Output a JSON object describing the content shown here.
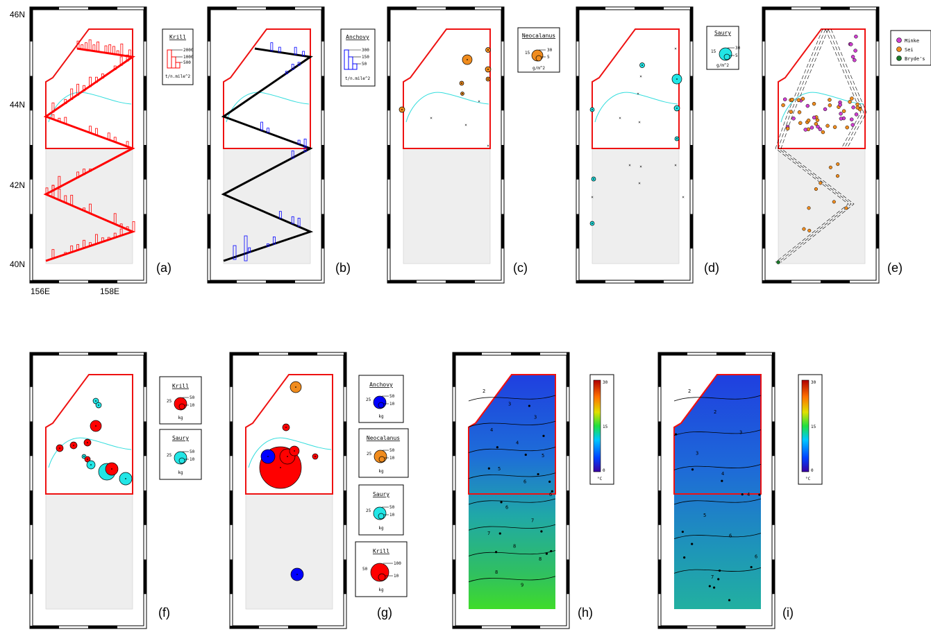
{
  "axis": {
    "lat_labels": [
      "46N",
      "44N",
      "42N",
      "40N"
    ],
    "lon_labels": [
      "156E",
      "158E"
    ]
  },
  "panel_labels": [
    "(a)",
    "(b)",
    "(c)",
    "(d)",
    "(e)",
    "(f)",
    "(g)",
    "(h)",
    "(i)"
  ],
  "legends": {
    "krill_a": {
      "title": "Krill",
      "values": [
        "2000",
        "1000",
        "500"
      ],
      "unit": "t/n.mile^2",
      "color": "#ff0000"
    },
    "anchovy_b": {
      "title": "Anchovy",
      "values": [
        "300",
        "150",
        "50"
      ],
      "unit": "t/n.mile^2",
      "color": "#0000ff"
    },
    "neocalanus_c": {
      "title": "Neocalanus",
      "left": "15",
      "values": [
        "30",
        "5"
      ],
      "unit": "g/m^2",
      "color": "#f08c1e"
    },
    "saury_d": {
      "title": "Saury",
      "left": "15",
      "values": [
        "30",
        "5"
      ],
      "unit": "g/m^2",
      "color": "#22e6e6"
    },
    "whales_e": [
      {
        "name": "Minke",
        "color": "#d040d0"
      },
      {
        "name": "Sei",
        "color": "#f08c1e"
      },
      {
        "name": "Bryde's",
        "color": "#1a7a2a"
      }
    ],
    "krill_f": {
      "title": "Krill",
      "left": "25",
      "values": [
        "50",
        "10"
      ],
      "unit": "kg",
      "color": "#ff0000"
    },
    "saury_f": {
      "title": "Saury",
      "left": "25",
      "values": [
        "50",
        "10"
      ],
      "unit": "kg",
      "color": "#22e6e6"
    },
    "anchovy_g": {
      "title": "Anchovy",
      "left": "25",
      "values": [
        "50",
        "10"
      ],
      "unit": "kg",
      "color": "#0000ff"
    },
    "neocalanus_g": {
      "title": "Neocalanus",
      "left": "25",
      "values": [
        "50",
        "10"
      ],
      "unit": "kg",
      "color": "#f08c1e"
    },
    "saury_g": {
      "title": "Saury",
      "left": "25",
      "values": [
        "50",
        "10"
      ],
      "unit": "kg",
      "color": "#22e6e6"
    },
    "krill_g": {
      "title": "Krill",
      "left": "50",
      "values": [
        "100",
        "10"
      ],
      "unit": "kg",
      "color": "#ff0000"
    },
    "temp_h": {
      "ticks": [
        "30",
        "15",
        "0"
      ],
      "unit": "°C"
    },
    "temp_i": {
      "ticks": [
        "30",
        "15",
        "0"
      ],
      "unit": "°C"
    }
  },
  "contours_h": [
    "2",
    "3",
    "3",
    "4",
    "4",
    "5",
    "5",
    "6",
    "6",
    "6",
    "7",
    "7",
    "8",
    "8",
    "8",
    "9"
  ],
  "contours_i": [
    "2",
    "2",
    "3",
    "3",
    "4",
    "4",
    "5",
    "6",
    "6",
    "7"
  ]
}
